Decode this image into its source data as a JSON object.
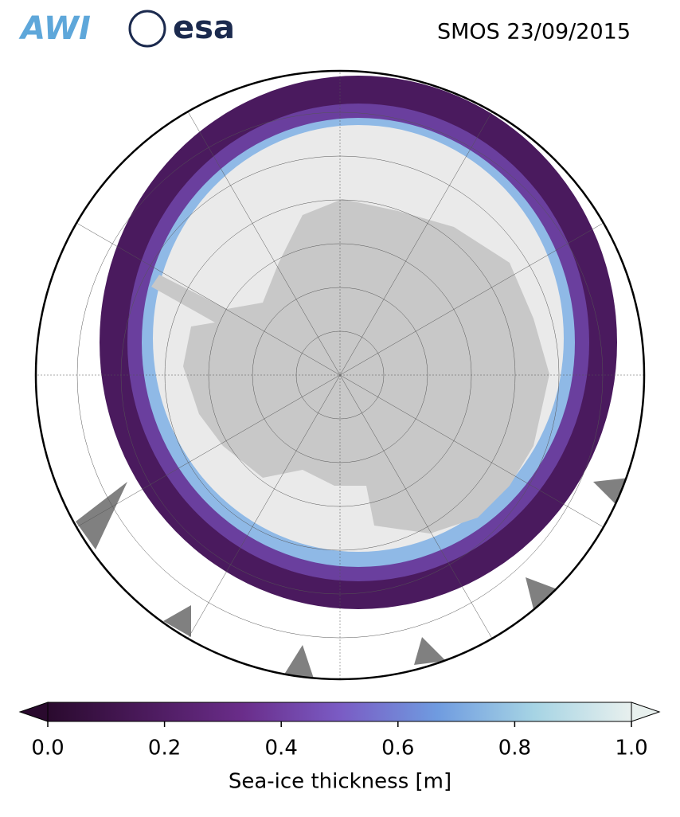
{
  "logos": [
    "AWI",
    "esa"
  ],
  "title": "SMOS 23/09/2015",
  "colorbar": {
    "label": "Sea-ice thickness [m]",
    "lim": [
      0,
      1
    ],
    "colors": [
      "#2a0a2e",
      "#4b1a5c",
      "#6a2d8a",
      "#7a5bc4",
      "#6f9be0",
      "#a6d4e4",
      "#e8f0ee"
    ],
    "ticks": [
      {
        "value": 0,
        "label": "0.0"
      },
      {
        "value": 0.2,
        "label": "0.2"
      },
      {
        "value": 0.4,
        "label": "0.4"
      },
      {
        "value": 0.6,
        "label": "0.6"
      },
      {
        "value": 0.8,
        "label": "0.8"
      },
      {
        "value": 1,
        "label": "1.0"
      }
    ]
  }
}
